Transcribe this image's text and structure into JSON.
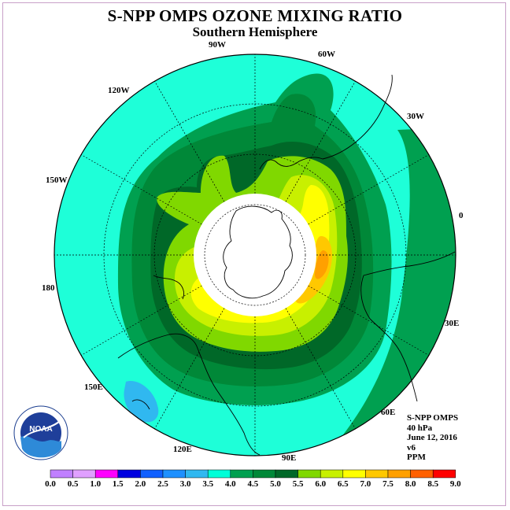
{
  "title": "S-NPP OMPS OZONE MIXING RATIO",
  "subtitle": "Southern Hemisphere",
  "longitude_labels": [
    "90W",
    "60W",
    "120W",
    "30W",
    "150W",
    "0",
    "180",
    "30E",
    "150E",
    "60E",
    "120E",
    "90E"
  ],
  "info": {
    "instrument": "S-NPP OMPS",
    "level": "40 hPa",
    "date": "June 12, 2016",
    "version": "v6",
    "unit": "PPM"
  },
  "logo": {
    "text": "NOAA"
  },
  "legend": {
    "ticks": [
      "0.0",
      "0.5",
      "1.0",
      "1.5",
      "2.0",
      "2.5",
      "3.0",
      "3.5",
      "4.0",
      "4.5",
      "5.0",
      "5.5",
      "6.0",
      "6.5",
      "7.0",
      "7.5",
      "8.0",
      "8.5",
      "9.0"
    ],
    "colors": [
      "#c080ff",
      "#e0a0ff",
      "#ff00ff",
      "#0000e0",
      "#1060ff",
      "#1e90ff",
      "#30b8f0",
      "#00ffd8",
      "#00a050",
      "#008838",
      "#006828",
      "#80d800",
      "#c8f000",
      "#ffff00",
      "#ffc800",
      "#ffa000",
      "#ff6000",
      "#ff0000",
      "#8b5a30"
    ]
  },
  "colors": {
    "ozone_3_5_4_0": "#1effd8",
    "ozone_4_0_4_5": "#00a050",
    "ozone_4_5_5_0": "#008838",
    "ozone_5_0_5_5": "#006828",
    "ozone_5_5_6_0": "#80d800",
    "ozone_6_0_6_5": "#c8f000",
    "ozone_6_5_7_0": "#ffff00",
    "ozone_7_0_7_5": "#ffc800",
    "ozone_7_5_8_0": "#ffa000",
    "ozone_low": "#30b8f0"
  }
}
